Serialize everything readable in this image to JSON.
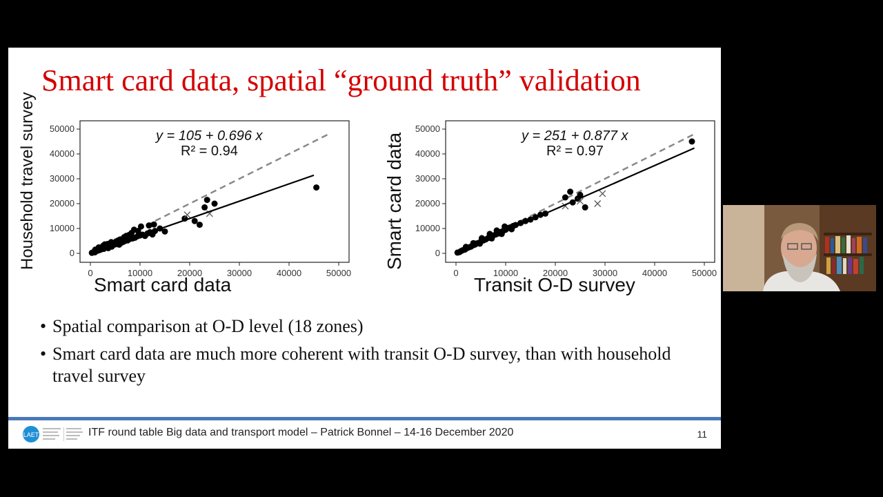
{
  "slide": {
    "title": "Smart card data, spatial “ground truth” validation",
    "bullets": [
      "Spatial comparison at O-D level (18 zones)",
      "Smart card data are much more coherent with transit O-D survey, than with household travel survey"
    ],
    "footer": {
      "logo_text": "LAET",
      "text": "ITF round table Big data and transport model – Patrick Bonnel – 14-16 December 2020",
      "page_number": "11"
    }
  },
  "colors": {
    "title": "#d40000",
    "divider": "#4a78b8",
    "logo": "#1e8fd6"
  },
  "chart_data": [
    {
      "type": "scatter",
      "xlabel": "Smart card data",
      "ylabel": "Household travel survey",
      "xlim": [
        0,
        50000
      ],
      "ylim": [
        0,
        50000
      ],
      "ticks": [
        "0",
        "10000",
        "20000",
        "30000",
        "40000",
        "50000"
      ],
      "equation": "y = 105 + 0.696 x",
      "r2_text": "R² = 0.94",
      "fit_line": {
        "intercept": 105,
        "slope": 0.696,
        "x_range": [
          0,
          45000
        ]
      },
      "identity_line": true,
      "points": [
        [
          300,
          200
        ],
        [
          600,
          500
        ],
        [
          900,
          400
        ],
        [
          1200,
          900
        ],
        [
          1500,
          1100
        ],
        [
          1800,
          1300
        ],
        [
          2100,
          1500
        ],
        [
          2400,
          2000
        ],
        [
          2700,
          1800
        ],
        [
          3000,
          2300
        ],
        [
          3300,
          2500
        ],
        [
          3600,
          2100
        ],
        [
          4000,
          3000
        ],
        [
          4300,
          2700
        ],
        [
          4600,
          3300
        ],
        [
          5000,
          3600
        ],
        [
          5400,
          3900
        ],
        [
          5800,
          3500
        ],
        [
          6200,
          4200
        ],
        [
          6600,
          4600
        ],
        [
          7000,
          5000
        ],
        [
          7500,
          5200
        ],
        [
          8000,
          5800
        ],
        [
          8500,
          6000
        ],
        [
          9000,
          6300
        ],
        [
          9500,
          6900
        ],
        [
          10000,
          7200
        ],
        [
          10500,
          7500
        ],
        [
          11000,
          7000
        ],
        [
          11500,
          8000
        ],
        [
          12000,
          8500
        ],
        [
          12500,
          7600
        ],
        [
          13000,
          9000
        ],
        [
          14000,
          10000
        ],
        [
          15000,
          8800
        ],
        [
          3500,
          3800
        ],
        [
          5200,
          4800
        ],
        [
          7200,
          7000
        ],
        [
          8800,
          9500
        ],
        [
          10200,
          10800
        ],
        [
          2600,
          3100
        ],
        [
          4200,
          4500
        ],
        [
          6800,
          6500
        ],
        [
          9600,
          9000
        ],
        [
          11800,
          11200
        ],
        [
          19000,
          14000
        ],
        [
          21000,
          13000
        ],
        [
          22000,
          11500
        ],
        [
          23000,
          18500
        ],
        [
          23500,
          21500
        ],
        [
          25000,
          20000
        ],
        [
          45500,
          26500
        ],
        [
          1000,
          1500
        ],
        [
          1700,
          2400
        ],
        [
          2900,
          3600
        ],
        [
          6000,
          5600
        ],
        [
          7800,
          7400
        ],
        [
          8300,
          8200
        ],
        [
          12800,
          11600
        ],
        [
          5600,
          5200
        ]
      ],
      "outliers": [
        [
          19500,
          15500
        ],
        [
          24000,
          16000
        ]
      ]
    },
    {
      "type": "scatter",
      "xlabel": "Transit O-D survey",
      "ylabel": "Smart card data",
      "xlim": [
        0,
        50000
      ],
      "ylim": [
        0,
        50000
      ],
      "ticks": [
        "0",
        "10000",
        "20000",
        "30000",
        "40000",
        "50000"
      ],
      "equation": "y = 251 + 0.877 x",
      "r2_text": "R² = 0.97",
      "fit_line": {
        "intercept": 251,
        "slope": 0.877,
        "x_range": [
          0,
          48000
        ]
      },
      "identity_line": true,
      "points": [
        [
          300,
          300
        ],
        [
          700,
          500
        ],
        [
          1000,
          900
        ],
        [
          1400,
          1300
        ],
        [
          1800,
          1500
        ],
        [
          2200,
          2100
        ],
        [
          2600,
          2400
        ],
        [
          3000,
          2700
        ],
        [
          3400,
          3200
        ],
        [
          3800,
          3500
        ],
        [
          4200,
          4000
        ],
        [
          4600,
          4200
        ],
        [
          5000,
          4700
        ],
        [
          5500,
          5200
        ],
        [
          6000,
          5600
        ],
        [
          6500,
          6200
        ],
        [
          7000,
          6500
        ],
        [
          7500,
          7200
        ],
        [
          8000,
          7600
        ],
        [
          8500,
          8000
        ],
        [
          9000,
          8600
        ],
        [
          9500,
          9000
        ],
        [
          10000,
          9500
        ],
        [
          10500,
          10200
        ],
        [
          11000,
          10500
        ],
        [
          11500,
          11000
        ],
        [
          12000,
          11400
        ],
        [
          13000,
          12200
        ],
        [
          14000,
          13000
        ],
        [
          15000,
          13600
        ],
        [
          16000,
          14500
        ],
        [
          17000,
          15500
        ],
        [
          18000,
          16000
        ],
        [
          2000,
          2600
        ],
        [
          3500,
          4100
        ],
        [
          5200,
          6100
        ],
        [
          6800,
          7800
        ],
        [
          8200,
          9200
        ],
        [
          9800,
          10800
        ],
        [
          4800,
          3900
        ],
        [
          7200,
          6000
        ],
        [
          9200,
          7800
        ],
        [
          11200,
          9700
        ],
        [
          22000,
          22500
        ],
        [
          23000,
          24800
        ],
        [
          23500,
          20500
        ],
        [
          24500,
          22000
        ],
        [
          25000,
          23500
        ],
        [
          26000,
          18500
        ],
        [
          47500,
          45000
        ]
      ],
      "outliers": [
        [
          22000,
          19000
        ],
        [
          25000,
          21000
        ],
        [
          28500,
          20000
        ],
        [
          29500,
          24000
        ]
      ]
    }
  ]
}
